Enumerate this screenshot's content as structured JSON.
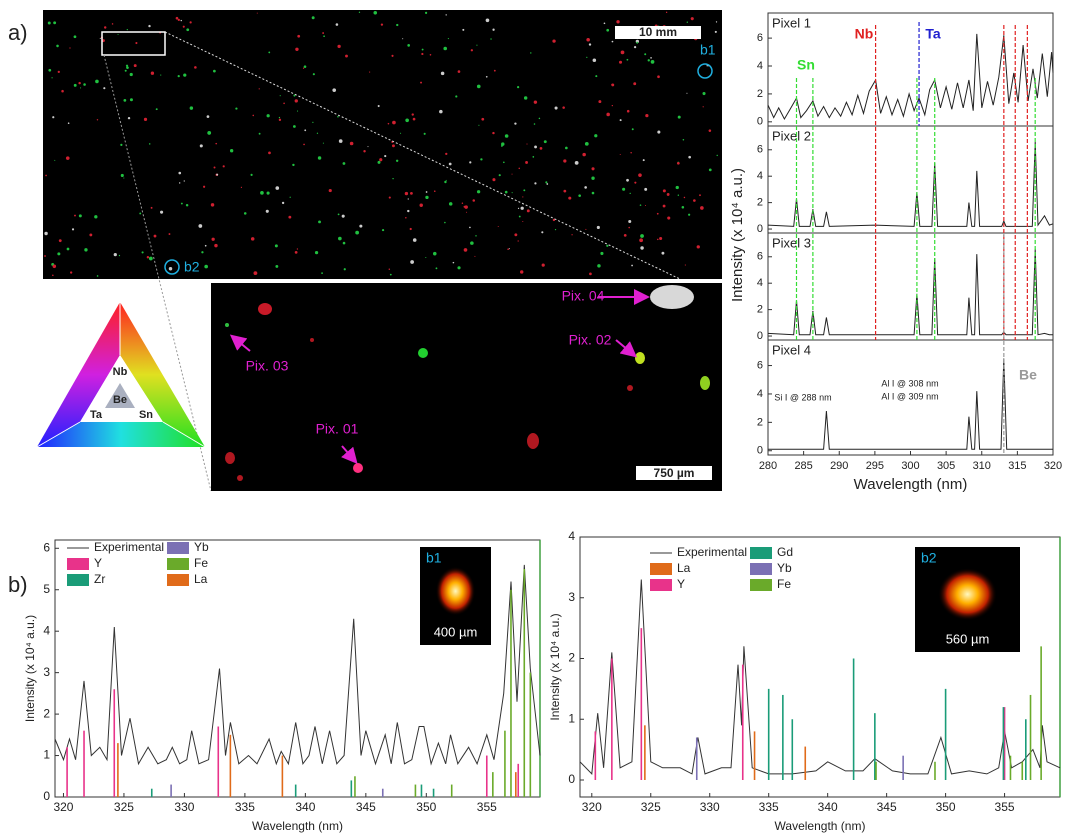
{
  "panel_labels": {
    "a": "a)",
    "b": "b)"
  },
  "map": {
    "scale": "10 mm",
    "b1": "b1",
    "b2": "b2"
  },
  "zoom": {
    "scale": "750 µm",
    "pixels": [
      "Pix. 01",
      "Pix. 02",
      "Pix. 03",
      "Pix. 04"
    ]
  },
  "triangle": {
    "top": "Nb",
    "center": "Be",
    "left": "Ta",
    "right": "Sn"
  },
  "element_lines": [
    {
      "label": "Sn",
      "color": "#33dd33",
      "x": [
        284.0,
        286.3,
        300.9,
        303.4,
        317.5
      ]
    },
    {
      "label": "Nb",
      "color": "#e02020",
      "x": [
        295.1,
        313.1,
        314.7,
        316.4
      ]
    },
    {
      "label": "Ta",
      "color": "#2020d0",
      "x": [
        301.2
      ]
    },
    {
      "label": "Be",
      "color": "#999999",
      "x": [
        313.1
      ]
    }
  ],
  "chart_data": [
    {
      "type": "line",
      "title": "Pixel 1",
      "xlim": [
        280,
        320
      ],
      "ylim": [
        -0.3,
        7.8
      ],
      "yticks": [
        0,
        2,
        4,
        6
      ],
      "color": "#222222",
      "x": [
        280,
        280.8,
        281.5,
        282.3,
        283.1,
        284.0,
        284.6,
        285.4,
        286.3,
        287.0,
        287.8,
        288.6,
        289.4,
        290.2,
        291.0,
        291.8,
        292.6,
        293.4,
        294.2,
        295.1,
        295.8,
        296.6,
        297.4,
        298.2,
        299.0,
        299.8,
        300.5,
        301.2,
        302.0,
        302.7,
        303.4,
        304.2,
        305.0,
        305.8,
        306.6,
        307.4,
        308.2,
        308.8,
        309.3,
        310.0,
        310.8,
        311.6,
        312.4,
        313.1,
        313.8,
        314.5,
        315.1,
        315.8,
        316.5,
        317.2,
        317.8,
        318.5,
        319.2,
        319.8,
        320
      ],
      "values": [
        1.2,
        0.3,
        1.0,
        0.2,
        0.9,
        1.7,
        0.3,
        0.8,
        1.5,
        0.4,
        1.1,
        0.3,
        1.0,
        0.4,
        1.4,
        0.5,
        1.9,
        0.6,
        2.2,
        3.0,
        0.6,
        1.8,
        0.5,
        1.6,
        0.4,
        2.0,
        0.8,
        1.7,
        0.5,
        2.3,
        3.0,
        1.0,
        2.5,
        0.9,
        2.8,
        1.0,
        3.0,
        0.8,
        6.3,
        1.0,
        2.9,
        1.2,
        3.2,
        6.2,
        1.3,
        3.5,
        1.4,
        5.5,
        1.5,
        3.8,
        1.7,
        4.9,
        1.8,
        5.0,
        3.5
      ]
    },
    {
      "type": "line",
      "title": "Pixel 2",
      "xlim": [
        280,
        320
      ],
      "ylim": [
        -0.3,
        7.8
      ],
      "yticks": [
        0,
        2,
        4,
        6
      ],
      "color": "#222222",
      "x": [
        280,
        283.6,
        284.0,
        284.4,
        285.9,
        286.3,
        286.7,
        287.8,
        288.2,
        288.6,
        295.0,
        300.5,
        300.9,
        301.3,
        303.0,
        303.4,
        303.8,
        307.9,
        308.2,
        308.6,
        309.0,
        309.3,
        309.7,
        312.8,
        313.1,
        313.4,
        317.1,
        317.5,
        317.9,
        318.8,
        319.5,
        320
      ],
      "values": [
        0.3,
        0.2,
        2.3,
        0.2,
        0.2,
        1.5,
        0.2,
        0.2,
        1.3,
        0.2,
        0.3,
        0.2,
        2.8,
        0.2,
        0.2,
        5.0,
        0.2,
        0.2,
        2.0,
        0.2,
        0.2,
        4.4,
        0.2,
        0.2,
        0.6,
        0.2,
        0.2,
        6.6,
        0.3,
        1.0,
        0.3,
        0.4
      ]
    },
    {
      "type": "line",
      "title": "Pixel 3",
      "xlim": [
        280,
        320
      ],
      "ylim": [
        -0.3,
        7.8
      ],
      "yticks": [
        0,
        2,
        4,
        6
      ],
      "color": "#222222",
      "x": [
        280,
        283.6,
        284.0,
        284.4,
        285.9,
        286.3,
        286.7,
        287.8,
        288.2,
        288.6,
        295.0,
        300.5,
        300.9,
        301.3,
        303.0,
        303.4,
        303.8,
        307.9,
        308.2,
        308.6,
        309.0,
        309.3,
        309.7,
        312.8,
        313.1,
        313.4,
        317.1,
        317.5,
        317.9,
        318.8,
        319.5,
        320
      ],
      "values": [
        0.2,
        0.1,
        2.7,
        0.1,
        0.1,
        1.9,
        0.1,
        0.1,
        1.4,
        0.1,
        0.1,
        0.1,
        3.2,
        0.1,
        0.1,
        5.9,
        0.1,
        0.1,
        2.9,
        0.1,
        0.1,
        6.2,
        0.1,
        0.1,
        0.3,
        0.1,
        0.1,
        6.6,
        0.1,
        0.2,
        0.1,
        0.1
      ]
    },
    {
      "type": "line",
      "title": "Pixel 4",
      "xlim": [
        280,
        320
      ],
      "ylim": [
        -0.3,
        7.8
      ],
      "yticks": [
        0,
        2,
        4,
        6
      ],
      "color": "#222222",
      "xticks": [
        280,
        285,
        290,
        295,
        300,
        305,
        310,
        315,
        320
      ],
      "xlabel": "Wavelength (nm)",
      "ylabel": "Intensity (x 10⁴ a.u.)",
      "annotations": [
        "Si I @ 288 nm",
        "Al I @ 308 nm",
        "Al I @ 309 nm"
      ],
      "x": [
        280,
        287.8,
        288.2,
        288.6,
        300,
        307.9,
        308.2,
        308.6,
        309.0,
        309.3,
        309.7,
        312.7,
        313.1,
        313.5,
        320
      ],
      "values": [
        0.1,
        0.1,
        2.8,
        0.1,
        0.1,
        0.1,
        2.4,
        0.1,
        0.1,
        4.2,
        0.1,
        0.1,
        6.5,
        0.1,
        0.1
      ]
    },
    {
      "type": "line",
      "xlim": [
        319.3,
        359.4
      ],
      "ylim": [
        0,
        6.2
      ],
      "xticks": [
        320,
        325,
        330,
        335,
        340,
        345,
        350,
        355
      ],
      "yticks": [
        0,
        1,
        2,
        3,
        4,
        5,
        6
      ],
      "xlabel": "Wavelength (nm)",
      "ylabel": "Intensity (x 10⁴ a.u.)",
      "inset": {
        "label": "b1",
        "scale": "400 µm"
      },
      "series": [
        {
          "name": "Experimental",
          "kind": "line",
          "color": "#333333",
          "x": [
            319.3,
            320.0,
            320.5,
            321.0,
            321.7,
            322.3,
            323.0,
            323.6,
            324.2,
            324.8,
            325.5,
            326.2,
            327.0,
            327.8,
            328.5,
            329.0,
            329.6,
            330.2,
            330.6,
            331.2,
            332.0,
            332.9,
            333.4,
            333.8,
            334.5,
            335.3,
            336.0,
            337.0,
            337.6,
            338.0,
            338.6,
            339.2,
            339.8,
            340.3,
            340.8,
            341.4,
            342.0,
            342.6,
            343.2,
            344.0,
            344.6,
            345.0,
            345.8,
            346.6,
            347.1,
            347.6,
            348.2,
            348.8,
            349.4,
            349.8,
            350.4,
            351.0,
            351.6,
            352.0,
            352.6,
            353.5,
            354.2,
            355.0,
            355.6,
            356.4,
            357.0,
            357.5,
            358.1,
            358.6,
            359.4
          ],
          "values": [
            1.4,
            0.9,
            1.4,
            0.9,
            2.8,
            1.0,
            1.2,
            0.9,
            4.1,
            1.0,
            1.9,
            0.8,
            1.2,
            0.8,
            0.9,
            1.2,
            0.8,
            0.9,
            1.6,
            0.8,
            0.9,
            3.1,
            1.0,
            1.8,
            0.8,
            1.0,
            0.8,
            1.4,
            0.8,
            1.1,
            0.8,
            1.8,
            0.8,
            1.0,
            1.7,
            0.8,
            1.6,
            0.8,
            1.0,
            4.3,
            1.0,
            1.6,
            0.8,
            1.5,
            0.8,
            1.8,
            0.8,
            0.9,
            1.7,
            1.7,
            0.8,
            1.3,
            0.8,
            1.5,
            0.8,
            1.2,
            0.8,
            1.5,
            0.9,
            2.5,
            5.2,
            2.3,
            5.6,
            3.1,
            1.0
          ]
        },
        {
          "name": "Y",
          "kind": "stick",
          "color": "#e8338a",
          "x": [
            320.3,
            321.7,
            324.2,
            332.8,
            355.0,
            357.6
          ],
          "values": [
            1.2,
            1.6,
            2.6,
            1.7,
            1.0,
            0.8
          ]
        },
        {
          "name": "Zr",
          "kind": "stick",
          "color": "#1a9c78",
          "x": [
            327.3,
            339.2,
            343.8,
            349.6,
            350.6
          ],
          "values": [
            0.2,
            0.3,
            0.4,
            0.3,
            0.2
          ]
        },
        {
          "name": "Yb",
          "kind": "stick",
          "color": "#7b70b4",
          "x": [
            328.9,
            346.4
          ],
          "values": [
            0.3,
            0.2
          ]
        },
        {
          "name": "Fe",
          "kind": "stick",
          "color": "#6aaa2a",
          "x": [
            344.1,
            349.1,
            352.1,
            355.5,
            356.5,
            357.0,
            358.1,
            358.6
          ],
          "values": [
            0.5,
            0.3,
            0.3,
            0.6,
            1.6,
            5.0,
            5.5,
            3.0
          ]
        },
        {
          "name": "La",
          "kind": "stick",
          "color": "#e06b1a",
          "x": [
            324.5,
            333.8,
            338.1,
            357.4
          ],
          "values": [
            1.3,
            1.5,
            1.0,
            0.6
          ]
        }
      ]
    },
    {
      "type": "line",
      "xlim": [
        319.0,
        359.7
      ],
      "ylim": [
        -0.28,
        4
      ],
      "xticks": [
        320,
        325,
        330,
        335,
        340,
        345,
        350,
        355
      ],
      "yticks": [
        0,
        1,
        2,
        3,
        4
      ],
      "xlabel": "Wavelength (nm)",
      "ylabel": "Intensity (x 10⁴ a.u.)",
      "inset": {
        "label": "b2",
        "scale": "560 µm"
      },
      "series": [
        {
          "name": "Experimental",
          "kind": "line",
          "color": "#333333",
          "x": [
            319.0,
            320.0,
            320.5,
            321.0,
            321.7,
            322.4,
            323.4,
            324.2,
            325.0,
            326.0,
            327.5,
            328.5,
            329.0,
            329.6,
            331.0,
            331.8,
            332.4,
            332.7,
            332.9,
            333.6,
            335.0,
            337.0,
            339.0,
            340.0,
            341.5,
            343.0,
            344.0,
            345.5,
            347.0,
            348.5,
            349.6,
            350.5,
            352.0,
            353.5,
            354.5,
            355.0,
            355.6,
            356.5,
            357.4,
            358.0,
            358.2,
            358.6,
            359.7
          ],
          "values": [
            0.3,
            0.1,
            1.1,
            0.2,
            2.1,
            0.2,
            0.3,
            3.3,
            0.3,
            0.2,
            0.2,
            0.1,
            0.7,
            0.1,
            0.2,
            0.2,
            1.9,
            0.9,
            2.2,
            0.2,
            0.1,
            0.1,
            0.15,
            0.3,
            0.15,
            0.15,
            0.35,
            0.15,
            0.1,
            0.1,
            0.7,
            0.1,
            0.15,
            0.1,
            0.2,
            0.8,
            0.2,
            0.3,
            0.5,
            0.2,
            0.9,
            0.3,
            0.2
          ]
        },
        {
          "name": "La",
          "kind": "stick",
          "color": "#e06b1a",
          "x": [
            324.5,
            333.8,
            338.1
          ],
          "values": [
            0.9,
            0.8,
            0.55
          ]
        },
        {
          "name": "Y",
          "kind": "stick",
          "color": "#e8338a",
          "x": [
            320.3,
            321.7,
            324.2,
            332.8,
            355.0
          ],
          "values": [
            0.8,
            2.0,
            2.5,
            1.9,
            1.2
          ]
        },
        {
          "name": "Gd",
          "kind": "stick",
          "color": "#1a9c78",
          "x": [
            335.0,
            336.2,
            337.0,
            342.2,
            344.0,
            350.0,
            354.9,
            356.8
          ],
          "values": [
            1.5,
            1.4,
            1.0,
            2.0,
            1.1,
            1.5,
            1.2,
            1.0
          ]
        },
        {
          "name": "Yb",
          "kind": "stick",
          "color": "#7b70b4",
          "x": [
            328.9,
            346.4
          ],
          "values": [
            0.7,
            0.4
          ]
        },
        {
          "name": "Fe",
          "kind": "stick",
          "color": "#6aaa2a",
          "x": [
            344.1,
            349.1,
            355.5,
            356.5,
            357.2,
            358.1
          ],
          "values": [
            0.3,
            0.3,
            0.4,
            0.3,
            1.4,
            2.2
          ]
        }
      ]
    }
  ]
}
